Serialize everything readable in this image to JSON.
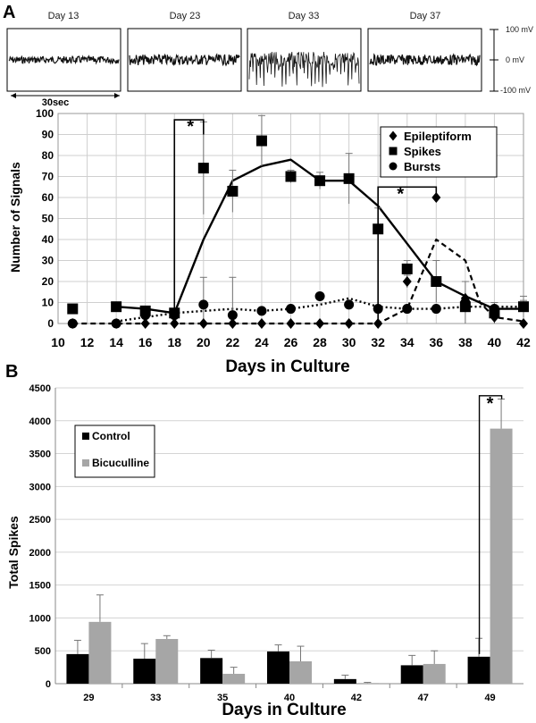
{
  "panel_labels": [
    "A",
    "B"
  ],
  "traces": {
    "days": [
      "Day 13",
      "Day 23",
      "Day 33",
      "Day 37"
    ],
    "scale_labels": [
      "100 mV",
      "0 mV",
      "-100 mV"
    ],
    "time_scale": "30sec"
  },
  "chart_data": [
    {
      "type": "line",
      "ylabel": "Number of Signals",
      "xlabel": "Days in Culture",
      "xlim": [
        10,
        42
      ],
      "ylim": [
        0,
        100
      ],
      "xticks": [
        10,
        12,
        14,
        16,
        18,
        20,
        22,
        24,
        26,
        28,
        30,
        32,
        34,
        36,
        38,
        40,
        42
      ],
      "yticks": [
        0,
        10,
        20,
        30,
        40,
        50,
        60,
        70,
        80,
        90,
        100
      ],
      "grid": true,
      "legend_placement": "top-right",
      "legend": [
        "Epileptiform",
        "Spikes",
        "Bursts"
      ],
      "significance": [
        "*",
        "*"
      ],
      "series": [
        {
          "name": "Epileptiform",
          "marker": "diamond",
          "points": [
            [
              11,
              0
            ],
            [
              14,
              0
            ],
            [
              16,
              0
            ],
            [
              18,
              0
            ],
            [
              20,
              0
            ],
            [
              22,
              0
            ],
            [
              24,
              0
            ],
            [
              26,
              0
            ],
            [
              28,
              0
            ],
            [
              30,
              0
            ],
            [
              32,
              0
            ],
            [
              34,
              20
            ],
            [
              36,
              60
            ],
            [
              38,
              12
            ],
            [
              40,
              3
            ],
            [
              42,
              0
            ]
          ],
          "errors": [
            0,
            0,
            0,
            0,
            0,
            0,
            0,
            0,
            0,
            0,
            0,
            3,
            0,
            0,
            0,
            0
          ],
          "trend": [
            [
              11,
              0
            ],
            [
              14,
              0
            ],
            [
              16,
              0
            ],
            [
              18,
              0
            ],
            [
              20,
              0
            ],
            [
              22,
              0
            ],
            [
              24,
              0
            ],
            [
              26,
              0
            ],
            [
              28,
              0
            ],
            [
              30,
              0
            ],
            [
              32,
              0
            ],
            [
              34,
              7
            ],
            [
              36,
              40
            ],
            [
              38,
              30
            ],
            [
              39,
              10
            ],
            [
              40,
              3
            ],
            [
              42,
              1
            ]
          ]
        },
        {
          "name": "Spikes",
          "marker": "square",
          "points": [
            [
              11,
              7
            ],
            [
              14,
              8
            ],
            [
              16,
              6
            ],
            [
              18,
              5
            ],
            [
              20,
              74
            ],
            [
              22,
              63
            ],
            [
              24,
              87
            ],
            [
              26,
              70
            ],
            [
              28,
              68
            ],
            [
              30,
              69
            ],
            [
              32,
              45
            ],
            [
              34,
              26
            ],
            [
              36,
              20
            ],
            [
              38,
              8
            ],
            [
              40,
              5
            ],
            [
              42,
              8
            ]
          ],
          "errors": [
            0,
            0,
            0,
            0,
            22,
            10,
            12,
            3,
            4,
            12,
            10,
            4,
            10,
            12,
            5,
            5
          ],
          "trend": [
            [
              14,
              8
            ],
            [
              16,
              7
            ],
            [
              18,
              5
            ],
            [
              20,
              40
            ],
            [
              22,
              68
            ],
            [
              24,
              75
            ],
            [
              26,
              78
            ],
            [
              28,
              68
            ],
            [
              30,
              68
            ],
            [
              32,
              56
            ],
            [
              34,
              38
            ],
            [
              36,
              20
            ],
            [
              38,
              13
            ],
            [
              40,
              7
            ],
            [
              42,
              7
            ]
          ]
        },
        {
          "name": "Bursts",
          "marker": "circle",
          "points": [
            [
              11,
              0
            ],
            [
              14,
              0
            ],
            [
              16,
              4
            ],
            [
              18,
              4
            ],
            [
              20,
              9
            ],
            [
              22,
              4
            ],
            [
              24,
              6
            ],
            [
              26,
              7
            ],
            [
              28,
              13
            ],
            [
              30,
              9
            ],
            [
              32,
              7
            ],
            [
              34,
              7
            ],
            [
              36,
              7
            ],
            [
              38,
              10
            ],
            [
              40,
              7
            ],
            [
              42,
              8
            ]
          ],
          "errors": [
            0,
            0,
            0,
            0,
            13,
            18,
            0,
            0,
            0,
            0,
            0,
            0,
            0,
            2,
            3,
            3
          ],
          "trend": [
            [
              14,
              1
            ],
            [
              16,
              3
            ],
            [
              18,
              5
            ],
            [
              20,
              6
            ],
            [
              22,
              7
            ],
            [
              24,
              6
            ],
            [
              26,
              7
            ],
            [
              28,
              9
            ],
            [
              30,
              12
            ],
            [
              32,
              8
            ],
            [
              34,
              7
            ],
            [
              36,
              7
            ],
            [
              38,
              8
            ],
            [
              40,
              8
            ],
            [
              42,
              8
            ]
          ]
        }
      ]
    },
    {
      "type": "bar",
      "ylabel": "Total Spikes",
      "xlabel": "Days in Culture",
      "ylim": [
        0,
        4500
      ],
      "yticks": [
        0,
        500,
        1000,
        1500,
        2000,
        2500,
        3000,
        3500,
        4000,
        4500
      ],
      "grid": true,
      "legend_placement": "top-left",
      "categories": [
        "29",
        "33",
        "35",
        "40",
        "42",
        "47",
        "49"
      ],
      "significance": [
        "*"
      ],
      "series": [
        {
          "name": "Control",
          "color": "#000000",
          "values": [
            450,
            380,
            390,
            490,
            70,
            280,
            410
          ],
          "errors": [
            210,
            230,
            120,
            100,
            60,
            150,
            280
          ]
        },
        {
          "name": "Bicuculline",
          "color": "#a6a6a6",
          "values": [
            940,
            680,
            150,
            340,
            10,
            300,
            3880
          ],
          "errors": [
            410,
            50,
            100,
            230,
            10,
            200,
            450
          ]
        }
      ]
    }
  ]
}
